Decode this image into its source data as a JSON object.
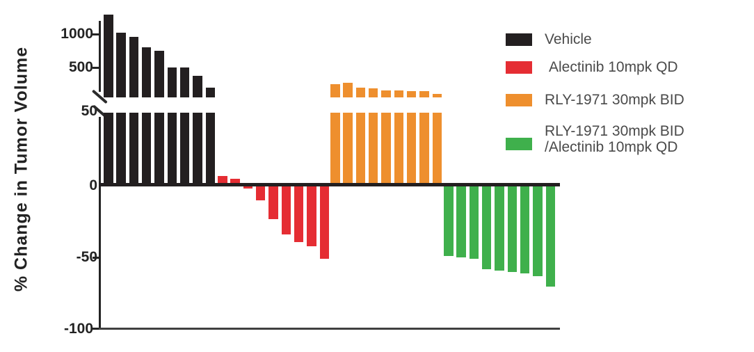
{
  "chart_data": {
    "type": "bar",
    "variant": "waterfall-with-broken-y-axis",
    "title": "",
    "xlabel": "",
    "ylabel": "% Change in Tumor Volume",
    "y_axis": {
      "lower_segment_ticks": [
        50,
        0,
        -50,
        -100
      ],
      "upper_segment_ticks": [
        1000,
        500
      ],
      "lower_segment_range": [
        -100,
        50
      ],
      "axis_break": true,
      "grid": false
    },
    "y_tick_labels": [
      "1000",
      "500",
      "50",
      "0",
      "-50",
      "-100"
    ],
    "series": [
      {
        "name": "Vehicle",
        "color": "#231f20",
        "values": [
          1290,
          1020,
          960,
          800,
          750,
          505,
          500,
          380,
          195
        ]
      },
      {
        "name": "Alectinib 10mpk QD",
        "color": "#e52d33",
        "values": [
          7,
          5,
          -2,
          -10,
          -23,
          -34,
          -39,
          -42,
          -51
        ]
      },
      {
        "name": "RLY-1971 30mpk BID",
        "color": "#ee8f2e",
        "values": [
          255,
          268,
          195,
          188,
          160,
          153,
          150,
          147,
          108
        ]
      },
      {
        "name": "RLY-1971 30mpk BID /Alectinib 10mpk QD",
        "color": "#3fb04c",
        "values": [
          -49,
          -50,
          -51,
          -58,
          -59,
          -60,
          -61,
          -63,
          -70
        ]
      }
    ],
    "legend": {
      "position": "top-right",
      "items": [
        {
          "label": "Vehicle",
          "color": "#231f20"
        },
        {
          "label": "Alectinib 10mpk QD",
          "color": "#e52d33"
        },
        {
          "label": "RLY-1971 30mpk BID",
          "color": "#ee8f2e"
        },
        {
          "label": "RLY-1971 30mpk BID",
          "label2": "/Alectinib 10mpk QD",
          "color": "#3fb04c"
        }
      ]
    }
  }
}
